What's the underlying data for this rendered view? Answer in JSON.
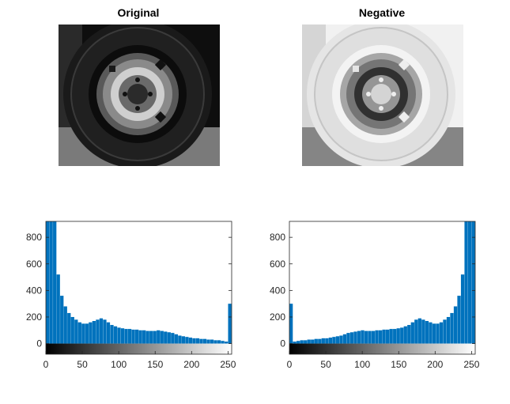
{
  "figure": {
    "left_title": "Original",
    "right_title": "Negative"
  },
  "chart_data": [
    {
      "type": "bar",
      "subject": "histogram of original image intensities",
      "xlim": [
        0,
        255
      ],
      "ylim": [
        -80,
        920
      ],
      "yticks": [
        0,
        200,
        400,
        600,
        800
      ],
      "xticks": [
        0,
        50,
        100,
        150,
        200,
        250
      ],
      "colorbar": "black-to-white gradient",
      "bar_color": "#0072BD",
      "x": [
        0,
        5,
        10,
        15,
        20,
        25,
        30,
        35,
        40,
        45,
        50,
        55,
        60,
        65,
        70,
        75,
        80,
        85,
        90,
        95,
        100,
        105,
        110,
        115,
        120,
        125,
        130,
        135,
        140,
        145,
        150,
        155,
        160,
        165,
        170,
        175,
        180,
        185,
        190,
        195,
        200,
        205,
        210,
        215,
        220,
        225,
        230,
        235,
        240,
        245,
        250,
        255
      ],
      "values": [
        920,
        920,
        920,
        520,
        360,
        280,
        230,
        200,
        180,
        160,
        150,
        150,
        160,
        170,
        180,
        190,
        180,
        160,
        140,
        130,
        120,
        115,
        110,
        110,
        105,
        105,
        100,
        100,
        95,
        95,
        95,
        100,
        95,
        90,
        85,
        80,
        70,
        60,
        55,
        50,
        45,
        40,
        40,
        35,
        35,
        30,
        30,
        25,
        25,
        20,
        15,
        300
      ]
    },
    {
      "type": "bar",
      "subject": "histogram of negative image intensities",
      "xlim": [
        0,
        255
      ],
      "ylim": [
        -80,
        920
      ],
      "yticks": [
        0,
        200,
        400,
        600,
        800
      ],
      "xticks": [
        0,
        50,
        100,
        150,
        200,
        250
      ],
      "colorbar": "black-to-white gradient",
      "bar_color": "#0072BD",
      "x": [
        0,
        5,
        10,
        15,
        20,
        25,
        30,
        35,
        40,
        45,
        50,
        55,
        60,
        65,
        70,
        75,
        80,
        85,
        90,
        95,
        100,
        105,
        110,
        115,
        120,
        125,
        130,
        135,
        140,
        145,
        150,
        155,
        160,
        165,
        170,
        175,
        180,
        185,
        190,
        195,
        200,
        205,
        210,
        215,
        220,
        225,
        230,
        235,
        240,
        245,
        250,
        255
      ],
      "values": [
        300,
        15,
        20,
        25,
        25,
        30,
        30,
        35,
        35,
        40,
        40,
        45,
        50,
        55,
        60,
        70,
        80,
        85,
        90,
        95,
        100,
        95,
        95,
        95,
        100,
        100,
        105,
        105,
        110,
        110,
        115,
        120,
        130,
        140,
        160,
        180,
        190,
        180,
        170,
        160,
        150,
        150,
        160,
        180,
        200,
        230,
        280,
        360,
        520,
        920,
        920,
        920
      ]
    }
  ]
}
